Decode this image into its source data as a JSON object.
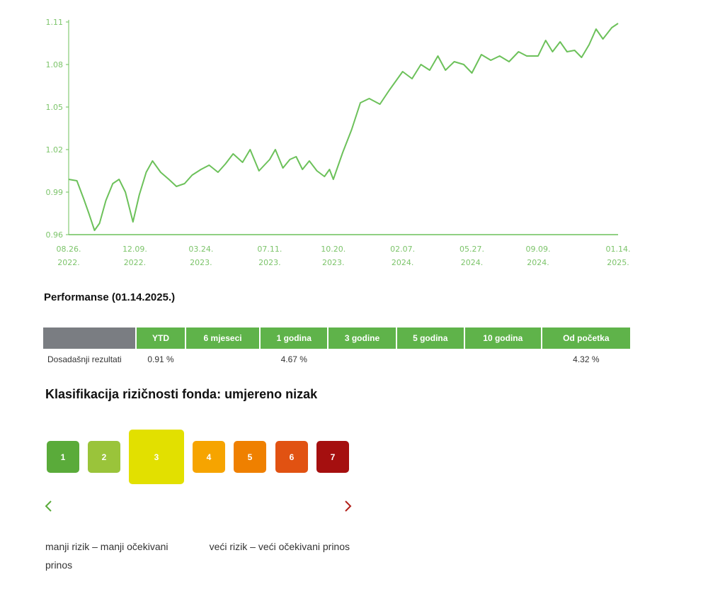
{
  "chart_data": {
    "type": "line",
    "title": "",
    "xlabel": "",
    "ylabel": "",
    "ylim": [
      0.96,
      1.11
    ],
    "xlim": [
      "2022-08-26",
      "2025-01-14"
    ],
    "yticks": [
      "0.96",
      "0.99",
      "1.02",
      "1.05",
      "1.08",
      "1.11"
    ],
    "xticks": [
      {
        "date": "2022-08-26",
        "line1": "08.26.",
        "line2": "2022."
      },
      {
        "date": "2022-12-09",
        "line1": "12.09.",
        "line2": "2022."
      },
      {
        "date": "2023-03-24",
        "line1": "03.24.",
        "line2": "2023."
      },
      {
        "date": "2023-07-11",
        "line1": "07.11.",
        "line2": "2023."
      },
      {
        "date": "2023-10-20",
        "line1": "10.20.",
        "line2": "2023."
      },
      {
        "date": "2024-02-07",
        "line1": "02.07.",
        "line2": "2024."
      },
      {
        "date": "2024-05-27",
        "line1": "05.27.",
        "line2": "2024."
      },
      {
        "date": "2024-09-09",
        "line1": "09.09.",
        "line2": "2024."
      },
      {
        "date": "2025-01-14",
        "line1": "01.14.",
        "line2": "2025."
      }
    ],
    "line_color": "#6cc15a",
    "grid": false,
    "x": [
      "2022-08-26",
      "2022-09-08",
      "2022-09-19",
      "2022-09-27",
      "2022-10-06",
      "2022-10-14",
      "2022-10-24",
      "2022-11-04",
      "2022-11-14",
      "2022-11-24",
      "2022-12-06",
      "2022-12-16",
      "2022-12-27",
      "2023-01-06",
      "2023-01-19",
      "2023-02-01",
      "2023-02-13",
      "2023-02-26",
      "2023-03-10",
      "2023-03-24",
      "2023-04-06",
      "2023-04-20",
      "2023-05-02",
      "2023-05-14",
      "2023-05-29",
      "2023-06-10",
      "2023-06-24",
      "2023-07-11",
      "2023-07-20",
      "2023-08-01",
      "2023-08-12",
      "2023-08-22",
      "2023-09-01",
      "2023-09-12",
      "2023-09-24",
      "2023-10-06",
      "2023-10-14",
      "2023-10-20",
      "2023-11-04",
      "2023-11-18",
      "2023-12-02",
      "2023-12-16",
      "2024-01-02",
      "2024-01-17",
      "2024-02-07",
      "2024-02-22",
      "2024-03-07",
      "2024-03-21",
      "2024-04-03",
      "2024-04-15",
      "2024-04-29",
      "2024-05-14",
      "2024-05-27",
      "2024-06-11",
      "2024-06-26",
      "2024-07-10",
      "2024-07-25",
      "2024-08-09",
      "2024-08-22",
      "2024-09-09",
      "2024-09-21",
      "2024-10-02",
      "2024-10-14",
      "2024-10-25",
      "2024-11-06",
      "2024-11-17",
      "2024-11-29",
      "2024-12-10",
      "2024-12-21",
      "2025-01-04",
      "2025-01-14"
    ],
    "series": [
      {
        "values": [
          0.999,
          0.998,
          0.985,
          0.975,
          0.963,
          0.968,
          0.984,
          0.996,
          0.999,
          0.99,
          0.969,
          0.988,
          1.004,
          1.012,
          1.004,
          0.999,
          0.994,
          0.996,
          1.002,
          1.006,
          1.009,
          1.004,
          1.01,
          1.017,
          1.011,
          1.02,
          1.005,
          1.013,
          1.02,
          1.007,
          1.013,
          1.015,
          1.006,
          1.012,
          1.005,
          1.001,
          1.006,
          0.999,
          1.018,
          1.034,
          1.053,
          1.056,
          1.052,
          1.062,
          1.075,
          1.07,
          1.08,
          1.076,
          1.086,
          1.076,
          1.082,
          1.08,
          1.074,
          1.087,
          1.083,
          1.086,
          1.082,
          1.089,
          1.086,
          1.086,
          1.097,
          1.089,
          1.096,
          1.089,
          1.09,
          1.085,
          1.094,
          1.105,
          1.098,
          1.106,
          1.109
        ]
      }
    ]
  },
  "performance": {
    "title": "Performanse (01.14.2025.)",
    "headers": [
      "YTD",
      "6 mjeseci",
      "1 godina",
      "3 godine",
      "5 godina",
      "10 godina",
      "Od početka"
    ],
    "row_label": "Dosadašnji rezultati",
    "values": [
      "0.91 %",
      "",
      "4.67 %",
      "",
      "",
      "",
      "4.32 %"
    ],
    "header_color": "#5fb34a"
  },
  "risk": {
    "title": "Klasifikacija rizičnosti fonda: umjereno nizak",
    "levels": [
      {
        "label": "1",
        "color": "#5aab3a"
      },
      {
        "label": "2",
        "color": "#9ac43a"
      },
      {
        "label": "3",
        "color": "#e2e000"
      },
      {
        "label": "4",
        "color": "#f6a400"
      },
      {
        "label": "5",
        "color": "#ef8000"
      },
      {
        "label": "6",
        "color": "#e15212"
      },
      {
        "label": "7",
        "color": "#a50f0f"
      }
    ],
    "selected_level": 3,
    "low_label": "manji rizik – manji očekivani prinos",
    "high_label": "veći rizik – veći očekivani prinos"
  }
}
